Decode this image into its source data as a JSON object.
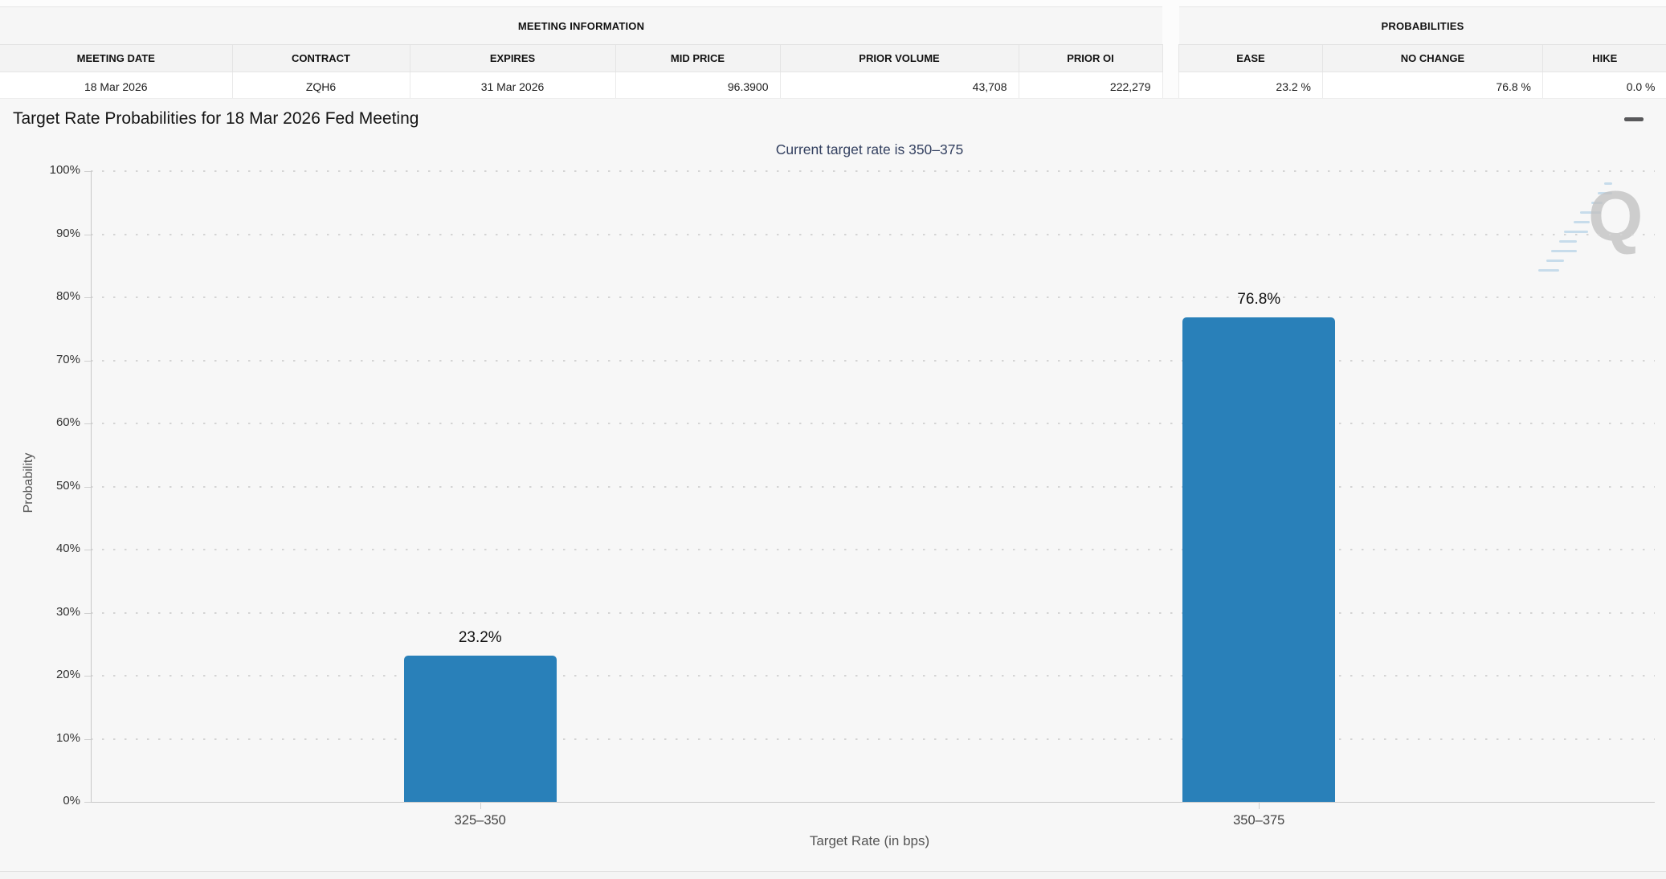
{
  "meeting_information": {
    "title": "MEETING INFORMATION",
    "columns": [
      "MEETING DATE",
      "CONTRACT",
      "EXPIRES",
      "MID PRICE",
      "PRIOR VOLUME",
      "PRIOR OI"
    ],
    "row": {
      "meeting_date": "18 Mar 2026",
      "contract": "ZQH6",
      "expires": "31 Mar 2026",
      "mid_price": "96.3900",
      "prior_volume": "43,708",
      "prior_oi": "222,279"
    }
  },
  "probabilities": {
    "title": "PROBABILITIES",
    "columns": [
      "EASE",
      "NO CHANGE",
      "HIKE"
    ],
    "row": {
      "ease": "23.2 %",
      "no_change": "76.8 %",
      "hike": "0.0 %"
    }
  },
  "chart": {
    "title": "Target Rate Probabilities for 18 Mar 2026 Fed Meeting",
    "subtitle": "Current target rate is 350–375",
    "ylabel": "Probability",
    "xlabel": "Target Rate (in bps)",
    "watermark_letter": "Q",
    "menu_icon": "hamburger-menu"
  },
  "chart_data": {
    "type": "bar",
    "title": "Target Rate Probabilities for 18 Mar 2026 Fed Meeting",
    "subtitle": "Current target rate is 350–375",
    "categories": [
      "325–350",
      "350–375"
    ],
    "values": [
      23.2,
      76.8
    ],
    "value_labels": [
      "23.2%",
      "76.8%"
    ],
    "xlabel": "Target Rate (in bps)",
    "ylabel": "Probability",
    "ylim": [
      0,
      100
    ],
    "yticks": [
      0,
      10,
      20,
      30,
      40,
      50,
      60,
      70,
      80,
      90,
      100
    ],
    "ytick_suffix": "%",
    "bar_color": "#2980b9",
    "grid": "horizontal-dotted",
    "legend": "none"
  },
  "colors": {
    "bar": "#2980b9",
    "subtitle_text": "#334060",
    "panel_bg": "#f7f7f7",
    "gridline": "#d4d4d4"
  }
}
